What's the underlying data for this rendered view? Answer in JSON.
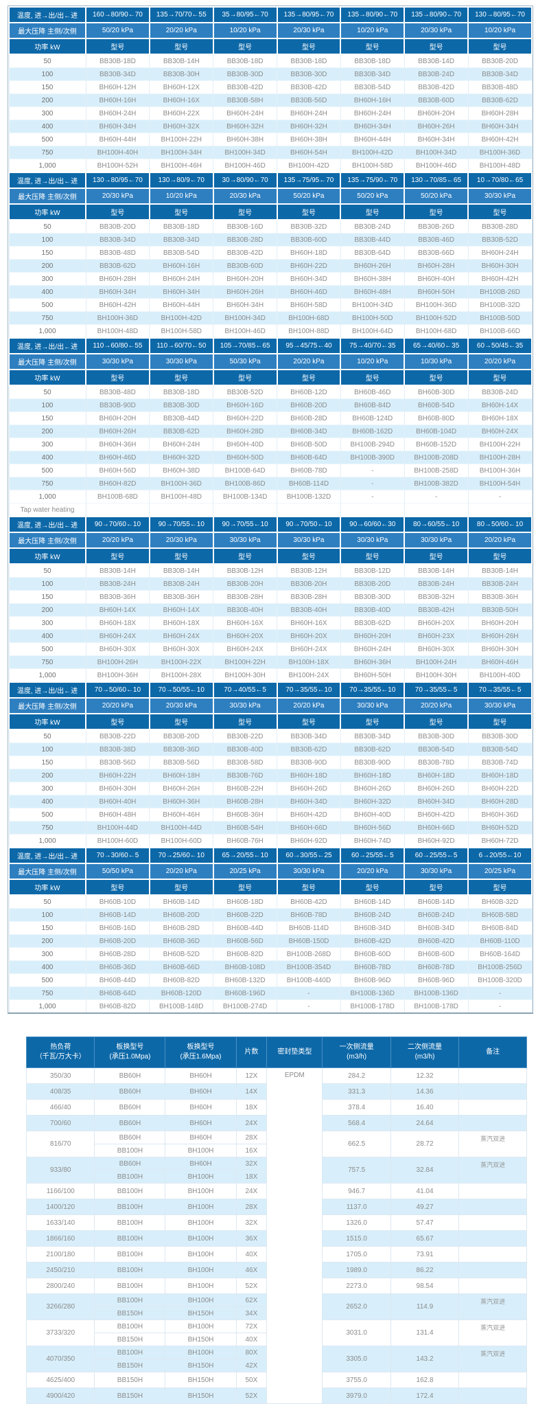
{
  "colors": {
    "header_dark_blue": "#0d68a8",
    "header_medium_blue": "#2e7fc0",
    "row_light_blue": "#d8effb",
    "row_white": "#ffffff",
    "text_gray": "#8b8b8b"
  },
  "selection_table": {
    "row_headers": {
      "temperature": "温度, 进→出/出←进",
      "pressure": "最大压降 主侧/次侧",
      "power": "功率 kW",
      "model": "型号"
    },
    "power_values": [
      "50",
      "100",
      "150",
      "200",
      "300",
      "400",
      "500",
      "750",
      "1,000"
    ],
    "tap_row": {
      "label": "Tap water heating",
      "before_section": 3
    },
    "sections": [
      {
        "temps": [
          "160→80/90←70",
          "135→70/70←55",
          "35→80/95←70",
          "135→80/95←70",
          "135→80/90←70",
          "135→80/90←70",
          "130→80/95←70"
        ],
        "pressures": [
          "50/20 kPa",
          "20/20 kPa",
          "10/20 kPa",
          "20/30 kPa",
          "10/20 kPa",
          "20/30 kPa",
          "10/20 kPa"
        ],
        "models": [
          [
            "BB30B-18D",
            "BB30B-14H",
            "BB30B-18D",
            "BB30B-18D",
            "BB30B-18D",
            "BB30B-14D",
            "BB30B-20D"
          ],
          [
            "BB30B-34D",
            "BB30B-30H",
            "BB30B-30D",
            "BB30B-30D",
            "BB30B-34D",
            "BB30B-24D",
            "BB30B-34D"
          ],
          [
            "BH60H-12H",
            "BH60H-12X",
            "BB30B-42D",
            "BB30B-42D",
            "BB30B-54D",
            "BB30B-42D",
            "BB30B-48D"
          ],
          [
            "BH60H-16H",
            "BH60H-16X",
            "BB30B-58H",
            "BB30B-56D",
            "BH60H-16H",
            "BB30B-60D",
            "BB30B-62D"
          ],
          [
            "BH60H-24H",
            "BH60H-22X",
            "BH60H-24H",
            "BH60H-24H",
            "BH60H-24H",
            "BH60H-20H",
            "BH60H-28H"
          ],
          [
            "BH60H-34H",
            "BH60H-32X",
            "BH60H-32H",
            "BH60H-32H",
            "BH60H-34H",
            "BH60H-26H",
            "BH60H-34H"
          ],
          [
            "BH60H-44H",
            "BH100H-22H",
            "BH60H-38H",
            "BH60H-38H",
            "BH60H-44H",
            "BH60H-34H",
            "BH60H-42H"
          ],
          [
            "BH100H-40H",
            "BH100H-34H",
            "BH100H-34D",
            "BH60H-54H",
            "BH100H-42D",
            "BH100H-34D",
            "BH100H-36D"
          ],
          [
            "BH100H-52H",
            "BH100H-46H",
            "BH100H-46D",
            "BH100H-42D",
            "BH100H-58D",
            "BH100H-46D",
            "BH100H-48D"
          ]
        ]
      },
      {
        "temps": [
          "130→80/95←70",
          "130→80/9←70",
          "30→80/90←70",
          "135→75/95←70",
          "135→75/90←70",
          "130→70/85←65",
          "10→70/80←65"
        ],
        "pressures": [
          "20/30 kPa",
          "10/20 kPa",
          "20/30 kPa",
          "50/20 kPa",
          "50/20 kPa",
          "50/20 kPa",
          "30/30 kPa"
        ],
        "models": [
          [
            "BB30B-20D",
            "BB30B-18D",
            "BB30B-16D",
            "BB30B-32D",
            "BB30B-24D",
            "BB30B-26D",
            "BB30B-28D"
          ],
          [
            "BB30B-34D",
            "BB30B-34D",
            "BB30B-28D",
            "BB30B-60D",
            "BB30B-44D",
            "BB30B-46D",
            "BB30B-52D"
          ],
          [
            "BB30B-48D",
            "BB30B-54D",
            "BB30B-42D",
            "BH60H-18D",
            "BB30B-64D",
            "BB30B-66D",
            "BH60H-24H"
          ],
          [
            "BB30B-62D",
            "BH60H-16H",
            "BB30B-60D",
            "BH60H-22D",
            "BH60H-26H",
            "BH60H-28H",
            "BH60H-30H"
          ],
          [
            "BH60H-28H",
            "BH60H-24H",
            "BH60H-20H",
            "BH60H-34D",
            "BH60H-38H",
            "BH60H-40H",
            "BH60H-42H"
          ],
          [
            "BH60H-34H",
            "BH60H-34H",
            "BH60H-26H",
            "BH60H-46D",
            "BH60H-48H",
            "BH60H-50H",
            "BH100B-26D"
          ],
          [
            "BH60H-42H",
            "BH60H-44H",
            "BH60H-34H",
            "BH60H-58D",
            "BH100H-34D",
            "BH100H-36D",
            "BH100B-32D"
          ],
          [
            "BH100H-36D",
            "BH100H-42D",
            "BH100H-34D",
            "BH100H-68D",
            "BH100H-50D",
            "BH100H-52D",
            "BH100B-50D"
          ],
          [
            "BH100H-48D",
            "BH100H-58D",
            "BH100H-46D",
            "BH100H-88D",
            "BH100H-64D",
            "BH100H-68D",
            "BH100B-66D"
          ]
        ]
      },
      {
        "temps": [
          "110→60/80←55",
          "110→60/70←50",
          "105→70/85←65",
          "95→45/75←40",
          "75→40/70←35",
          "65→40/60←35",
          "60→50/45←35"
        ],
        "pressures": [
          "30/30 kPa",
          "30/30 kPa",
          "50/30 kPa",
          "20/20 kPa",
          "10/20 kPa",
          "10/30 kPa",
          "20/20 kPa"
        ],
        "models": [
          [
            "BB30B-48D",
            "BB30B-18D",
            "BB30B-52D",
            "BH60B-12D",
            "BH60B-46D",
            "BH60B-30D",
            "BB30B-24D"
          ],
          [
            "BB30B-90D",
            "BB30B-30D",
            "BH60H-16D",
            "BH60B-20D",
            "BH60B-84D",
            "BH60B-54D",
            "BH60H-14X"
          ],
          [
            "BH60H-20H",
            "BB30B-44D",
            "BH60H-22D",
            "BH60B-28D",
            "BH60B-124D",
            "BH60B-80D",
            "BH60H-18X"
          ],
          [
            "BH60H-26H",
            "BB30B-62D",
            "BH60H-28D",
            "BH60B-34D",
            "BH60B-162D",
            "BH60B-104D",
            "BH60H-24X"
          ],
          [
            "BH60H-36H",
            "BH60H-24H",
            "BH60H-40D",
            "BH60B-50D",
            "BH100B-294D",
            "BH60B-152D",
            "BH100H-22H"
          ],
          [
            "BH60H-46D",
            "BH60H-32D",
            "BH60H-50D",
            "BH60B-64D",
            "BH100B-390D",
            "BH100B-208D",
            "BH100H-28H"
          ],
          [
            "BH60H-56D",
            "BH60H-38D",
            "BH100B-64D",
            "BH60B-78D",
            "-",
            "BH100B-258D",
            "BH100H-36H"
          ],
          [
            "BH60H-82D",
            "BH100H-36D",
            "BH100B-86D",
            "BH60B-114D",
            "-",
            "BH100B-382D",
            "BH100H-54H"
          ],
          [
            "BH100B-68D",
            "BH100H-48D",
            "BH100B-134D",
            "BH100B-132D",
            "-",
            "-",
            "-"
          ]
        ]
      },
      {
        "temps": [
          "90→70/60←10",
          "90→70/55←10",
          "90→70/55←10",
          "90→70/50←10",
          "90→60/60←30",
          "80→60/55←10",
          "80→50/60←10"
        ],
        "pressures": [
          "20/20 kPa",
          "20/30 kPa",
          "30/30 kPa",
          "30/30 kPa",
          "30/30 kPa",
          "30/30 kPa",
          "20/20 kPa"
        ],
        "models": [
          [
            "BB30B-14H",
            "BB30B-14H",
            "BB30B-12H",
            "BB30B-12H",
            "BB30B-12D",
            "BB30B-14H",
            "BB30B-14H"
          ],
          [
            "BB30B-24H",
            "BB30B-24H",
            "BB30B-20H",
            "BB30B-20H",
            "BB30B-20D",
            "BB30B-24H",
            "BB30B-24H"
          ],
          [
            "BB30B-36H",
            "BB30B-36H",
            "BB30B-28H",
            "BB30B-28H",
            "BB30B-30D",
            "BB30B-32H",
            "BB30B-36H"
          ],
          [
            "BH60H-14X",
            "BH60H-14X",
            "BB30B-40H",
            "BB30B-40H",
            "BB30B-40D",
            "BB30B-42H",
            "BB30B-50H"
          ],
          [
            "BH60H-18X",
            "BH60H-18X",
            "BH60H-16X",
            "BH60H-16X",
            "BB30B-62D",
            "BH60H-20X",
            "BH60H-20H"
          ],
          [
            "BH60H-24X",
            "BH60H-24X",
            "BH60H-20X",
            "BH60H-20X",
            "BH60H-20H",
            "BH60H-23X",
            "BH60H-26H"
          ],
          [
            "BH60H-30X",
            "BH60H-30X",
            "BH60H-24X",
            "BH60H-24X",
            "BH60H-24H",
            "BH60H-30X",
            "BH60H-30H"
          ],
          [
            "BH100H-26H",
            "BH100H-22X",
            "BH100H-22H",
            "BH100H-18X",
            "BH60H-36H",
            "BH100H-24H",
            "BH60H-46H"
          ],
          [
            "BH100H-36H",
            "BH100H-28X",
            "BH100H-30H",
            "BH100H-24X",
            "BH60H-50H",
            "BH100H-30H",
            "BH100H-40D"
          ]
        ]
      },
      {
        "temps": [
          "70→50/60←10",
          "70→50/55←10",
          "70→40/55←5",
          "70→35/55←10",
          "70→35/55←10",
          "70→35/55←5",
          "70→35/55←5"
        ],
        "pressures": [
          "20/20 kPa",
          "20/30 kPa",
          "30/30 kPa",
          "20/20 kPa",
          "30/30 kPa",
          "20/20 kPa",
          "30/30 kPa"
        ],
        "models": [
          [
            "BB30B-22D",
            "BB30B-20D",
            "BB30B-22D",
            "BB30B-34D",
            "BB30B-34D",
            "BB30B-30D",
            "BB30B-30D"
          ],
          [
            "BB30B-38D",
            "BB30B-36D",
            "BB30B-40D",
            "BB30B-62D",
            "BB30B-62D",
            "BB30B-54D",
            "BB30B-54D"
          ],
          [
            "BB30B-56D",
            "BB30B-56D",
            "BB30B-58D",
            "BB30B-90D",
            "BB30B-90D",
            "BB30B-78D",
            "BB30B-74D"
          ],
          [
            "BH60H-22H",
            "BH60H-18H",
            "BB30B-76D",
            "BH60H-18D",
            "BH60H-18D",
            "BH60H-18D",
            "BH60H-18D"
          ],
          [
            "BH60H-30H",
            "BH60H-26H",
            "BH60B-22H",
            "BH60H-26D",
            "BH60H-26D",
            "BH60H-26D",
            "BH60H-22D"
          ],
          [
            "BH60H-40H",
            "BH60H-36H",
            "BH60B-28H",
            "BH60H-34D",
            "BH60H-32D",
            "BH60H-34D",
            "BH60H-28D"
          ],
          [
            "BH60H-48H",
            "BH60H-46H",
            "BH60B-36H",
            "BH60H-42D",
            "BH60H-40D",
            "BH60H-42D",
            "BH60H-36D"
          ],
          [
            "BH100H-44D",
            "BH100H-44D",
            "BH60B-54H",
            "BH60H-66D",
            "BH60H-56D",
            "BH60H-66D",
            "BH60H-52D"
          ],
          [
            "BH100H-60D",
            "BH100H-60D",
            "BH60B-76H",
            "BH60H-92D",
            "BH60H-74D",
            "BH60H-92D",
            "BH60H-72D"
          ]
        ]
      },
      {
        "temps": [
          "70→30/60←5",
          "70→25/60←10",
          "65→20/55←10",
          "60→30/55←25",
          "60→25/55←5",
          "60→25/55←5",
          "6→20/55←10"
        ],
        "pressures": [
          "50/50 kPa",
          "20/20 kPa",
          "20/25 kPa",
          "30/30 kPa",
          "20/20 kPa",
          "30/30 kPa",
          "20/25 kPa"
        ],
        "models": [
          [
            "BH60B-10D",
            "BH60B-14D",
            "BH60B-18D",
            "BH60B-42D",
            "BH60B-14D",
            "BH60B-14D",
            "BH60B-32D"
          ],
          [
            "BH60B-14D",
            "BH60B-20D",
            "BH60B-22D",
            "BH60B-78D",
            "BH60B-24D",
            "BH60B-24D",
            "BH60B-58D"
          ],
          [
            "BH60B-16D",
            "BH60B-28D",
            "BH60B-44D",
            "BH60B-114D",
            "BH60B-34D",
            "BH60B-34D",
            "BH60B-84D"
          ],
          [
            "BH60B-20D",
            "BH60B-36D",
            "BH60B-56D",
            "BH60B-150D",
            "BH60B-42D",
            "BH60B-42D",
            "BH60B-110D"
          ],
          [
            "BH60B-28D",
            "BH60B-52D",
            "BH60B-82D",
            "BH100B-268D",
            "BH60B-60D",
            "BH60B-60D",
            "BH60B-164D"
          ],
          [
            "BH60B-36D",
            "BH60B-66D",
            "BH60B-108D",
            "BH100B-354D",
            "BH60B-78D",
            "BH60B-78D",
            "BH100B-256D"
          ],
          [
            "BH60B-44D",
            "BH60B-82D",
            "BH60B-132D",
            "BH100B-440D",
            "BH60B-96D",
            "BH60B-96D",
            "BH100B-320D"
          ],
          [
            "BH60B-64D",
            "BH60B-120D",
            "BH60B-196D",
            "-",
            "BH100B-136D",
            "BH100B-136D",
            "-"
          ],
          [
            "BH60B-82D",
            "BH100B-148D",
            "BH100B-274D",
            "-",
            "BH100B-178D",
            "BH100B-178D",
            "-"
          ]
        ]
      }
    ]
  },
  "steam_table": {
    "headers": [
      {
        "line1": "热负荷",
        "line2": "（千瓦/万大卡）"
      },
      {
        "line1": "板换型号",
        "line2": "(承压1.0Mpa)"
      },
      {
        "line1": "板换型号",
        "line2": "(承压1.6Mpa)"
      },
      {
        "line1": "片数",
        "line2": ""
      },
      {
        "line1": "密封垫类型",
        "line2": ""
      },
      {
        "line1": "一次侧流量",
        "line2": "(m3/h)"
      },
      {
        "line1": "二次侧流量",
        "line2": "(m3/h)"
      },
      {
        "line1": "备注",
        "line2": ""
      }
    ],
    "gasket_type": "EPDM",
    "groups": [
      {
        "load": "350/30",
        "variants": [
          [
            "BB60H",
            "BH60H",
            "12X"
          ]
        ],
        "primary_flow": "284.2",
        "secondary_flow": "12.32",
        "remark": ""
      },
      {
        "load": "408/35",
        "variants": [
          [
            "BB60H",
            "BH60H",
            "14X"
          ]
        ],
        "primary_flow": "331.3",
        "secondary_flow": "14.36",
        "remark": ""
      },
      {
        "load": "466/40",
        "variants": [
          [
            "BB60H",
            "BH60H",
            "18X"
          ]
        ],
        "primary_flow": "378.4",
        "secondary_flow": "16.40",
        "remark": ""
      },
      {
        "load": "700/60",
        "variants": [
          [
            "BB60H",
            "BH60H",
            "24X"
          ]
        ],
        "primary_flow": "568.4",
        "secondary_flow": "24.64",
        "remark": ""
      },
      {
        "load": "816/70",
        "variants": [
          [
            "BB60H",
            "BH60H",
            "28X"
          ],
          [
            "BB100H",
            "BH100H",
            "16X"
          ]
        ],
        "primary_flow": "662.5",
        "secondary_flow": "28.72",
        "remark": "蒸汽双进"
      },
      {
        "load": "933/80",
        "variants": [
          [
            "BB60H",
            "BH60H",
            "32X"
          ],
          [
            "BB100H",
            "BH100H",
            "18X"
          ]
        ],
        "primary_flow": "757.5",
        "secondary_flow": "32.84",
        "remark": "蒸汽双进"
      },
      {
        "load": "1166/100",
        "variants": [
          [
            "BB100H",
            "BH100H",
            "24X"
          ]
        ],
        "primary_flow": "946.7",
        "secondary_flow": "41.04",
        "remark": ""
      },
      {
        "load": "1400/120",
        "variants": [
          [
            "BB100H",
            "BH100H",
            "28X"
          ]
        ],
        "primary_flow": "1137.0",
        "secondary_flow": "49.27",
        "remark": ""
      },
      {
        "load": "1633/140",
        "variants": [
          [
            "BB100H",
            "BH100H",
            "32X"
          ]
        ],
        "primary_flow": "1326.0",
        "secondary_flow": "57.47",
        "remark": ""
      },
      {
        "load": "1866/160",
        "variants": [
          [
            "BB100H",
            "BH100H",
            "36X"
          ]
        ],
        "primary_flow": "1515.0",
        "secondary_flow": "65.67",
        "remark": ""
      },
      {
        "load": "2100/180",
        "variants": [
          [
            "BB100H",
            "BH100H",
            "40X"
          ]
        ],
        "primary_flow": "1705.0",
        "secondary_flow": "73.91",
        "remark": ""
      },
      {
        "load": "2450/210",
        "variants": [
          [
            "BB100H",
            "BH100H",
            "46X"
          ]
        ],
        "primary_flow": "1989.0",
        "secondary_flow": "86.22",
        "remark": ""
      },
      {
        "load": "2800/240",
        "variants": [
          [
            "BB100H",
            "BH100H",
            "52X"
          ]
        ],
        "primary_flow": "2273.0",
        "secondary_flow": "98.54",
        "remark": ""
      },
      {
        "load": "3266/280",
        "variants": [
          [
            "BB100H",
            "BH100H",
            "62X"
          ],
          [
            "BB150H",
            "BH150H",
            "34X"
          ]
        ],
        "primary_flow": "2652.0",
        "secondary_flow": "114.9",
        "remark": "蒸汽双进"
      },
      {
        "load": "3733/320",
        "variants": [
          [
            "BB100H",
            "BH100H",
            "72X"
          ],
          [
            "BB150H",
            "BH150H",
            "40X"
          ]
        ],
        "primary_flow": "3031.0",
        "secondary_flow": "131.4",
        "remark": "蒸汽双进"
      },
      {
        "load": "4070/350",
        "variants": [
          [
            "BB100H",
            "BH100H",
            "80X"
          ],
          [
            "BB150H",
            "BH150H",
            "42X"
          ]
        ],
        "primary_flow": "3305.0",
        "secondary_flow": "143.2",
        "remark": "蒸汽双进"
      },
      {
        "load": "4625/400",
        "variants": [
          [
            "BB150H",
            "BH150H",
            "50X"
          ]
        ],
        "primary_flow": "3755.0",
        "secondary_flow": "162.8",
        "remark": ""
      },
      {
        "load": "4900/420",
        "variants": [
          [
            "BB150H",
            "BH150H",
            "52X"
          ]
        ],
        "primary_flow": "3979.0",
        "secondary_flow": "172.4",
        "remark": ""
      }
    ]
  }
}
